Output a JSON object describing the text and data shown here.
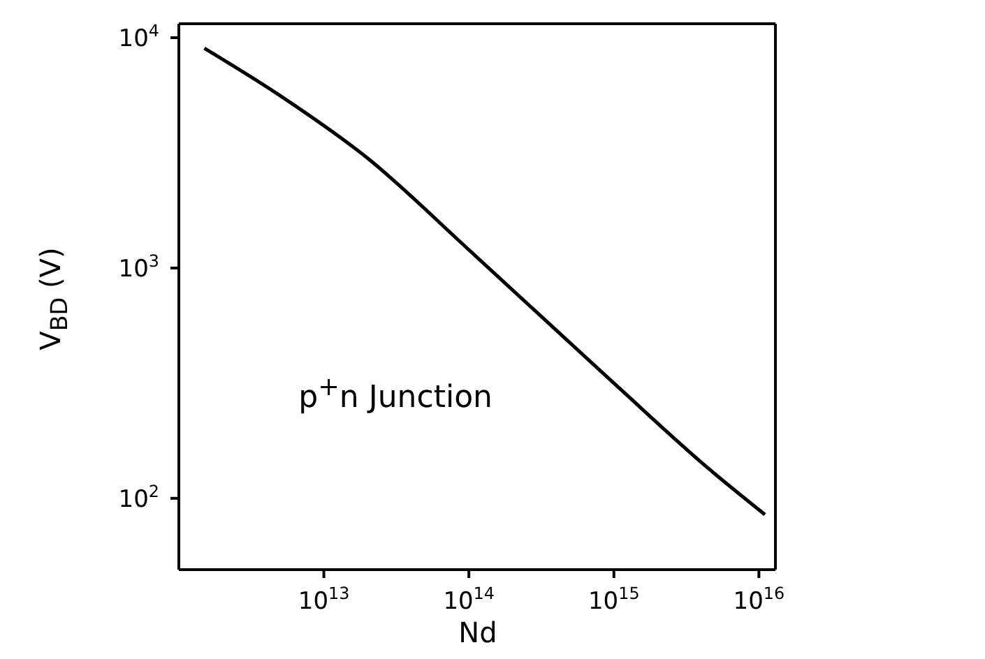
{
  "chart_data": {
    "type": "line",
    "xlabel": "Nd",
    "ylabel": "V$_{BD}$  (V)",
    "annotations": [
      "p$^{+}$n Junction"
    ],
    "x": [
      1500000000000.0,
      5000000000000.0,
      20000000000000.0,
      100000000000000.0,
      1000000000000000.0,
      4600000000000000.0,
      1.1e+16
    ],
    "series": [
      {
        "color": "#000000",
        "values": [
          9000,
          5600,
          3000,
          1200,
          316,
          133,
          85
        ]
      }
    ],
    "log": "xy",
    "xlim": [
      1000000000000.0,
      1.3e+16
    ],
    "ylim": [
      49,
      11500
    ],
    "xticks": [
      {
        "value": 10000000000000.0,
        "label": "10$^{13}$"
      },
      {
        "value": 100000000000000.0,
        "label": "10$^{14}$"
      },
      {
        "value": 1000000000000000.0,
        "label": "10$^{15}$"
      },
      {
        "value": 1e+16,
        "label": "10$^{16}$"
      }
    ],
    "yticks": [
      {
        "value": 100,
        "label": "10$^{2}$"
      },
      {
        "value": 1000,
        "label": "10$^{3}$"
      },
      {
        "value": 10000,
        "label": "10$^{4}$"
      }
    ],
    "grid": false,
    "marker": "none",
    "line_style": "solid"
  }
}
